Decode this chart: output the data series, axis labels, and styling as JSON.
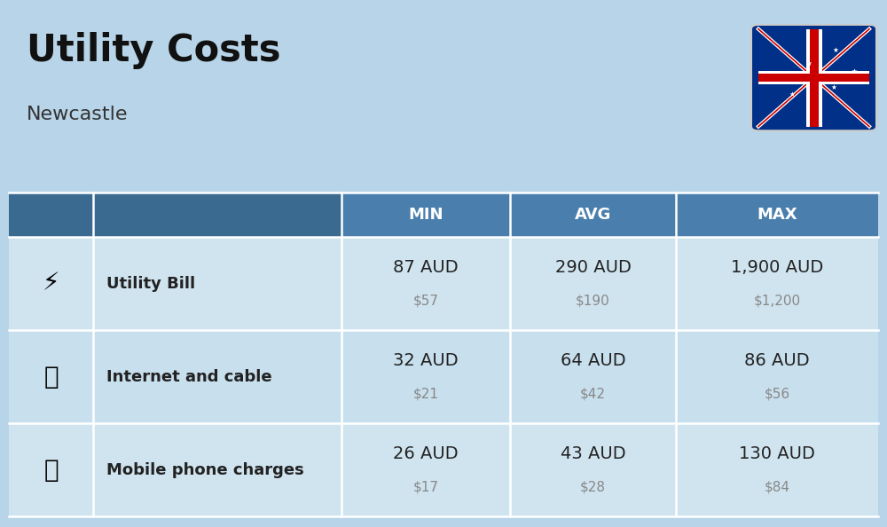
{
  "title": "Utility Costs",
  "subtitle": "Newcastle",
  "background_color": "#b8d4e8",
  "header_bg_color": "#4a7fad",
  "header_text_color": "#ffffff",
  "row_bg_colors": [
    "#d0e4f0",
    "#c8dfed"
  ],
  "cell_text_color": "#222222",
  "sub_text_color": "#888888",
  "header_labels": [
    "MIN",
    "AVG",
    "MAX"
  ],
  "rows": [
    {
      "label": "Utility Bill",
      "min_aud": "87 AUD",
      "min_usd": "$57",
      "avg_aud": "290 AUD",
      "avg_usd": "$190",
      "max_aud": "1,900 AUD",
      "max_usd": "$1,200"
    },
    {
      "label": "Internet and cable",
      "min_aud": "32 AUD",
      "min_usd": "$21",
      "avg_aud": "64 AUD",
      "avg_usd": "$42",
      "max_aud": "86 AUD",
      "max_usd": "$56"
    },
    {
      "label": "Mobile phone charges",
      "min_aud": "26 AUD",
      "min_usd": "$17",
      "avg_aud": "43 AUD",
      "avg_usd": "$28",
      "max_aud": "130 AUD",
      "max_usd": "$84"
    }
  ],
  "title_fontsize": 30,
  "subtitle_fontsize": 16,
  "header_fontsize": 13,
  "label_fontsize": 13,
  "value_fontsize": 14,
  "sub_fontsize": 11
}
